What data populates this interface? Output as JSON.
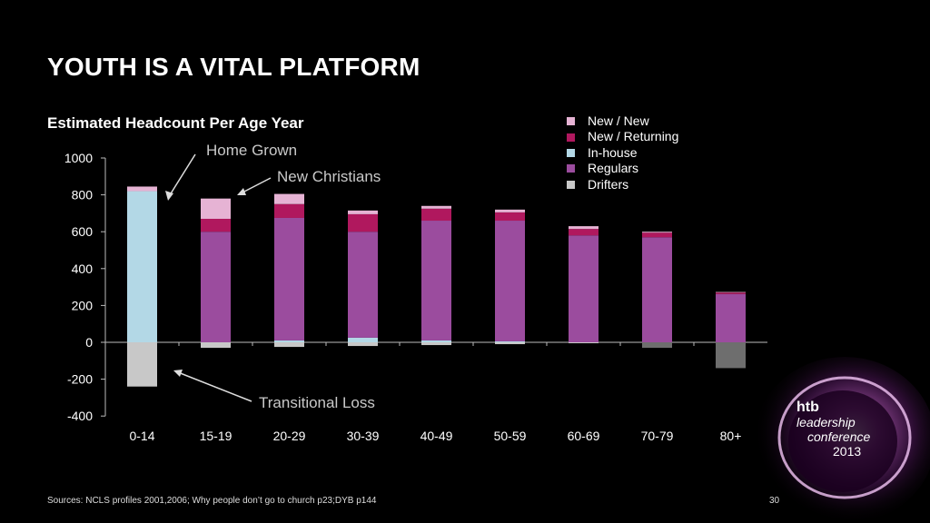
{
  "slide": {
    "title": "YOUTH IS A VITAL PLATFORM",
    "source": "Sources: NCLS profiles 2001,2006; Why people don’t go to church p23;DYB p144",
    "page_number": "30"
  },
  "annotations": {
    "home_grown": "Home Grown",
    "new_christians": "New Christians",
    "transitional_loss": "Transitional Loss"
  },
  "logo": {
    "line1": "htb",
    "line2": "leadership",
    "line3": "conference",
    "line4": "2013"
  },
  "chart_data": {
    "type": "bar",
    "stacked": true,
    "title": "Estimated Headcount Per Age Year",
    "xlabel": "",
    "ylabel": "",
    "ylim": [
      -400,
      1000
    ],
    "yticks": [
      "-400",
      "-200",
      "0",
      "200",
      "400",
      "600",
      "800",
      "1000"
    ],
    "grid": false,
    "legend_position": "top-right",
    "categories": [
      "0-14",
      "15-19",
      "20-29",
      "30-39",
      "40-49",
      "50-59",
      "60-69",
      "70-79",
      "80+"
    ],
    "series": [
      {
        "name": "Drifters",
        "color": "#c8c8c8",
        "values": [
          -240,
          -30,
          -25,
          -20,
          -15,
          -10,
          -5,
          -30,
          -140
        ]
      },
      {
        "name": "In-house",
        "color": "#b3d8e6",
        "values": [
          820,
          0,
          10,
          25,
          10,
          5,
          0,
          0,
          0
        ]
      },
      {
        "name": "Regulars",
        "color": "#9b4c9e",
        "values": [
          0,
          600,
          665,
          575,
          650,
          655,
          580,
          570,
          262
        ]
      },
      {
        "name": "New / Returning",
        "color": "#b0185e",
        "values": [
          0,
          70,
          75,
          95,
          65,
          45,
          35,
          25,
          8
        ]
      },
      {
        "name": "New / New",
        "color": "#e6b3d4",
        "values": [
          25,
          110,
          55,
          20,
          15,
          15,
          15,
          5,
          3
        ]
      }
    ],
    "legend_order": [
      "New / New",
      "New / Returning",
      "In-house",
      "Regulars",
      "Drifters"
    ]
  }
}
